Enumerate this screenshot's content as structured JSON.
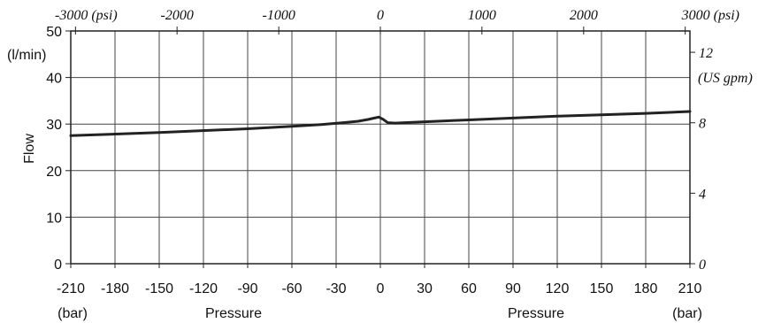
{
  "chart_data": {
    "type": "line",
    "x_axis_bottom": {
      "ticks": [
        -210,
        -180,
        -150,
        -120,
        -90,
        -60,
        -30,
        0,
        30,
        60,
        90,
        120,
        150,
        180,
        210
      ],
      "range": [
        -210,
        210
      ],
      "unit_label_left": "(bar)",
      "unit_label_right": "(bar)",
      "title_left": "Pressure",
      "title_right": "Pressure"
    },
    "x_axis_top": {
      "ticks": [
        "-3000 (psi)",
        "-2000",
        "-1000",
        "0",
        "1000",
        "2000",
        "3000 (psi)"
      ],
      "tick_bar_values": [
        -206.8,
        -137.9,
        -68.9,
        0,
        68.9,
        137.9,
        206.8
      ]
    },
    "y_axis_left": {
      "ticks": [
        0,
        10,
        20,
        30,
        40,
        50
      ],
      "range": [
        0,
        50
      ],
      "unit_label": "(l/min)",
      "title": "Flow"
    },
    "y_axis_right": {
      "ticks": [
        "0",
        "4",
        "8",
        "12"
      ],
      "tick_lpm_values": [
        0,
        15.14,
        30.28,
        45.42
      ],
      "unit_label": "(US gpm)"
    },
    "grid": true,
    "series": [
      {
        "x": [
          -210,
          -150,
          -90,
          -60,
          -40,
          -25,
          -15,
          -8,
          -4,
          -1,
          2,
          5,
          10,
          30,
          60,
          90,
          120,
          150,
          180,
          210
        ],
        "y": [
          27.5,
          28.2,
          29.0,
          29.5,
          29.9,
          30.3,
          30.6,
          31.0,
          31.3,
          31.5,
          31.0,
          30.3,
          30.2,
          30.5,
          30.9,
          31.3,
          31.7,
          32.0,
          32.3,
          32.7
        ]
      }
    ]
  }
}
